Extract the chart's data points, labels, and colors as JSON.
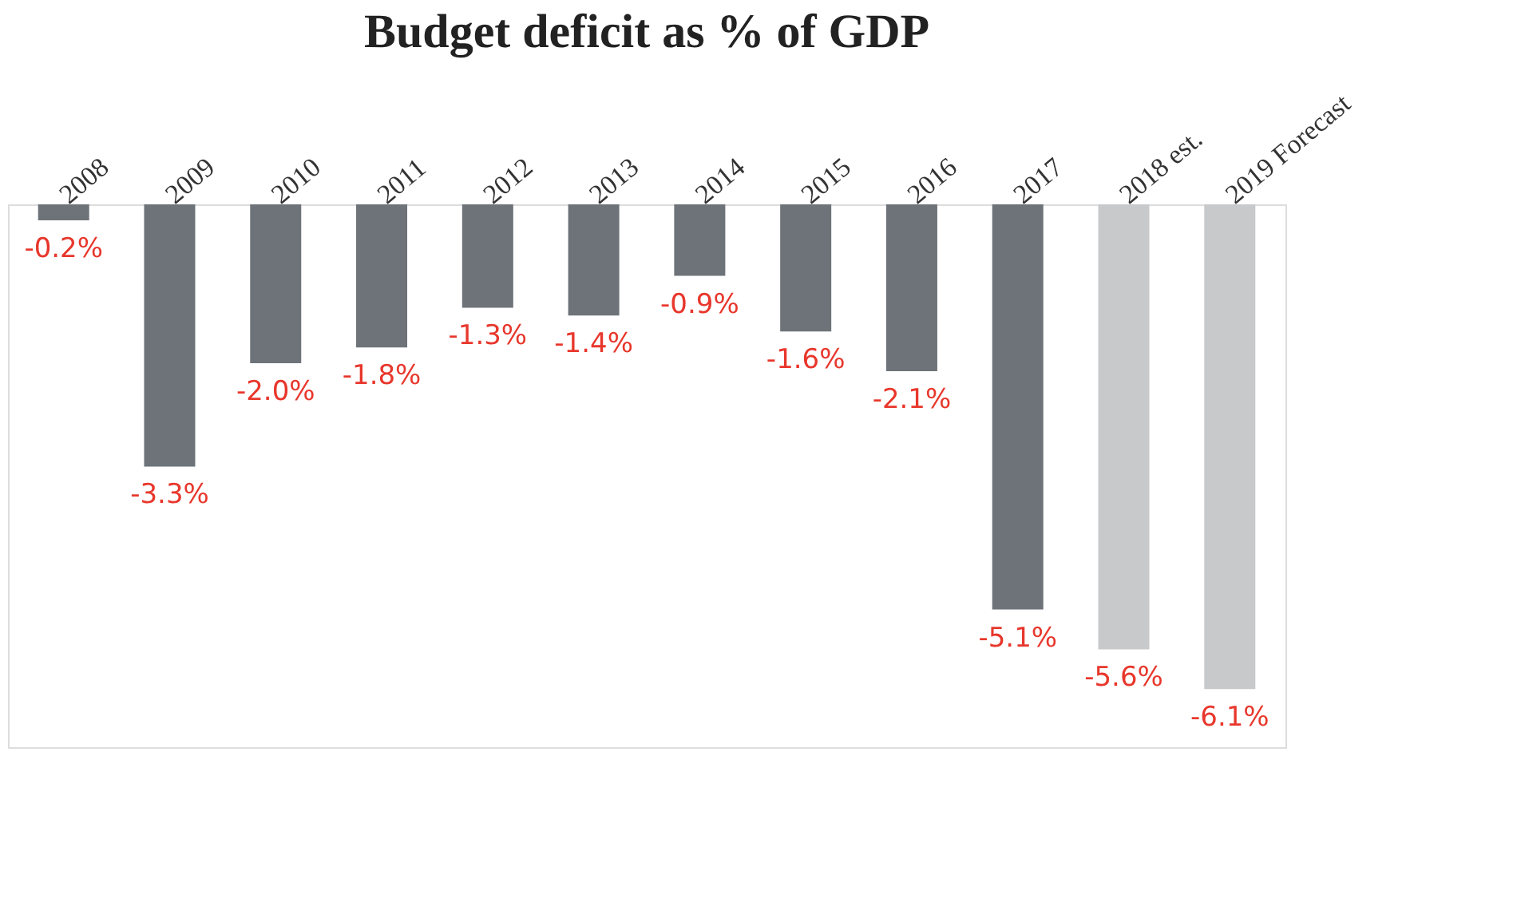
{
  "chart_data": {
    "type": "bar",
    "title": "Budget deficit as % of GDP",
    "categories": [
      "2008",
      "2009",
      "2010",
      "2011",
      "2012",
      "2013",
      "2014",
      "2015",
      "2016",
      "2017",
      "2018 est.",
      "2019 Forecast"
    ],
    "values": [
      -0.2,
      -3.3,
      -2.0,
      -1.8,
      -1.3,
      -1.4,
      -0.9,
      -1.6,
      -2.1,
      -5.1,
      -5.6,
      -6.1
    ],
    "colors": [
      "#6d7379",
      "#6d7379",
      "#6d7379",
      "#6d7379",
      "#6d7379",
      "#6d7379",
      "#6d7379",
      "#6d7379",
      "#6d7379",
      "#6d7379",
      "#c8c9cb",
      "#c8c9cb"
    ],
    "value_labels": [
      "-0.2%",
      "-3.3%",
      "-2.0%",
      "-1.8%",
      "-1.3%",
      "-1.4%",
      "-0.9%",
      "-1.6%",
      "-2.1%",
      "-5.1%",
      "-5.6%",
      "-6.1%"
    ],
    "grid": false,
    "legend": false
  }
}
